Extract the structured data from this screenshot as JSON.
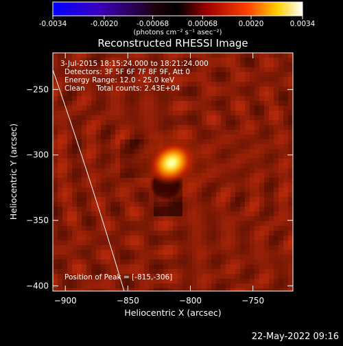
{
  "colorbar": {
    "ticks": [
      "-0.0034",
      "-0.0020",
      "-0.00068",
      "0.00068",
      "0.0020",
      "0.0034"
    ],
    "tick_values": [
      -0.0034,
      -0.002,
      -0.00068,
      0.00068,
      0.002,
      0.0034
    ],
    "range": [
      -0.0034,
      0.0034
    ],
    "units_label": "(photons cm⁻² s⁻¹ asec⁻²)",
    "colormap": [
      "#0000ff",
      "#000000",
      "#ff0000",
      "#ffff00",
      "#ffffff"
    ]
  },
  "chart_data": {
    "type": "heatmap",
    "title": "Reconstructed RHESSI Image",
    "xlabel": "Heliocentric X (arcsec)",
    "ylabel": "Heliocentric Y (arcsec)",
    "xlim": [
      -910,
      -718
    ],
    "ylim": [
      -404,
      -222
    ],
    "x_ticks": [
      -900,
      -850,
      -800,
      -750
    ],
    "y_ticks": [
      -250,
      -300,
      -350,
      -400
    ],
    "annotations": [
      "3-Jul-2015 18:15:24.000 to 18:21:24.000",
      "Detectors: 3F 5F 6F 7F 8F 9F, Att 0",
      "Energy Range: 12.0 - 25.0 keV",
      "Clean     Total counts: 2.43E+04"
    ],
    "peak_label": "Position of Peak = [-815,-306]",
    "peak": {
      "x": -815,
      "y": -306
    },
    "limb_line": [
      {
        "x": -910,
        "y": -235
      },
      {
        "x": -853,
        "y": -404
      }
    ]
  },
  "footer": {
    "timestamp": "22-May-2022 09:16"
  }
}
